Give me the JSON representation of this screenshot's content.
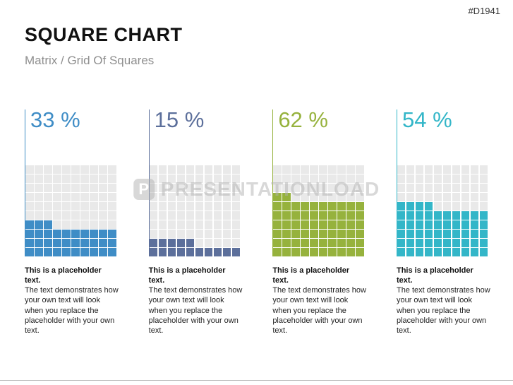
{
  "page": {
    "code": "#D1941",
    "title": "SQUARE CHART",
    "subtitle": "Matrix / Grid Of Squares"
  },
  "watermark": {
    "logo": "P",
    "text": "PRESENTATIONLOAD"
  },
  "placeholder": {
    "bold": "This is a placeholder text.",
    "body": "The text demonstrates how your own text will look when you replace the placeholder with your own text."
  },
  "chart_data": [
    {
      "type": "waffle",
      "label": "33 %",
      "value": 33,
      "total": 100,
      "rows": 10,
      "cols": 10,
      "color": "#3f8dc6",
      "empty_color": "#e9e9e9",
      "fill_direction": "bottom-up-left-to-right"
    },
    {
      "type": "waffle",
      "label": "15 %",
      "value": 15,
      "total": 100,
      "rows": 10,
      "cols": 10,
      "color": "#5c6f9b",
      "empty_color": "#e9e9e9",
      "fill_direction": "bottom-up-left-to-right"
    },
    {
      "type": "waffle",
      "label": "62 %",
      "value": 62,
      "total": 100,
      "rows": 10,
      "cols": 10,
      "color": "#96b23d",
      "empty_color": "#e9e9e9",
      "fill_direction": "bottom-up-left-to-right"
    },
    {
      "type": "waffle",
      "label": "54 %",
      "value": 54,
      "total": 100,
      "rows": 10,
      "cols": 10,
      "color": "#33b6c8",
      "empty_color": "#e9e9e9",
      "fill_direction": "bottom-up-left-to-right"
    }
  ]
}
